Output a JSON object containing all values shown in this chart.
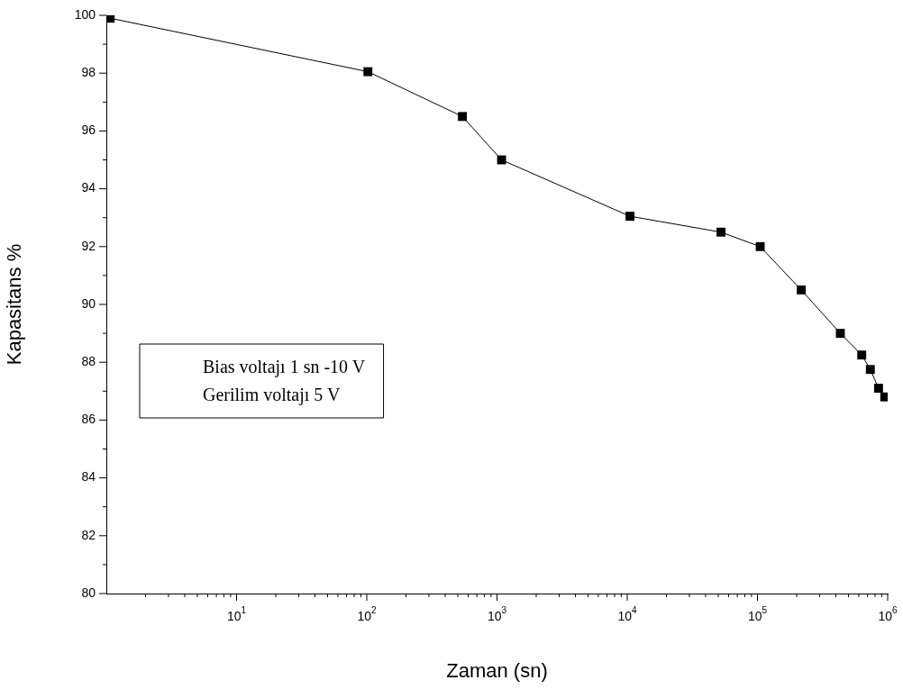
{
  "chart_data": {
    "type": "line",
    "xlabel": "Zaman (sn)",
    "ylabel": "Kapasitans %",
    "log": "x",
    "marker": "square",
    "line_style": "solid",
    "color": "#000000",
    "x": [
      1.07,
      102,
      542,
      1084,
      10500,
      52500,
      105000,
      217000,
      433000,
      632000,
      736000,
      851000,
      950000
    ],
    "values": [
      99.9,
      98.05,
      96.5,
      95,
      93.05,
      92.5,
      92,
      90.5,
      89,
      88.25,
      87.75,
      87.1,
      86.8
    ],
    "xlim": [
      1,
      1000000
    ],
    "xticks": [
      {
        "value": 2,
        "label": null
      },
      {
        "value": 3,
        "label": null
      },
      {
        "value": 4,
        "label": null
      },
      {
        "value": 5,
        "label": null
      },
      {
        "value": 6,
        "label": null
      },
      {
        "value": 7,
        "label": null
      },
      {
        "value": 8,
        "label": null
      },
      {
        "value": 9,
        "label": null
      },
      {
        "value": 10,
        "label": "10$^{1}$"
      },
      {
        "value": 20,
        "label": null
      },
      {
        "value": 30,
        "label": null
      },
      {
        "value": 40,
        "label": null
      },
      {
        "value": 50,
        "label": null
      },
      {
        "value": 60,
        "label": null
      },
      {
        "value": 70,
        "label": null
      },
      {
        "value": 80,
        "label": null
      },
      {
        "value": 90,
        "label": null
      },
      {
        "value": 100,
        "label": "10$^{2}$"
      },
      {
        "value": 200,
        "label": null
      },
      {
        "value": 300,
        "label": null
      },
      {
        "value": 400,
        "label": null
      },
      {
        "value": 500,
        "label": null
      },
      {
        "value": 600,
        "label": null
      },
      {
        "value": 700,
        "label": null
      },
      {
        "value": 800,
        "label": null
      },
      {
        "value": 900,
        "label": null
      },
      {
        "value": 1000,
        "label": "10$^{3}$"
      },
      {
        "value": 2000,
        "label": null
      },
      {
        "value": 3000,
        "label": null
      },
      {
        "value": 4000,
        "label": null
      },
      {
        "value": 5000,
        "label": null
      },
      {
        "value": 6000,
        "label": null
      },
      {
        "value": 7000,
        "label": null
      },
      {
        "value": 8000,
        "label": null
      },
      {
        "value": 9000,
        "label": null
      },
      {
        "value": 10000,
        "label": "10$^{4}$"
      },
      {
        "value": 20000,
        "label": null
      },
      {
        "value": 30000,
        "label": null
      },
      {
        "value": 40000,
        "label": null
      },
      {
        "value": 50000,
        "label": null
      },
      {
        "value": 60000,
        "label": null
      },
      {
        "value": 70000,
        "label": null
      },
      {
        "value": 80000,
        "label": null
      },
      {
        "value": 90000,
        "label": null
      },
      {
        "value": 100000,
        "label": "10$^{5}$"
      },
      {
        "value": 200000,
        "label": null
      },
      {
        "value": 300000,
        "label": null
      },
      {
        "value": 400000,
        "label": null
      },
      {
        "value": 500000,
        "label": null
      },
      {
        "value": 600000,
        "label": null
      },
      {
        "value": 700000,
        "label": null
      },
      {
        "value": 800000,
        "label": null
      },
      {
        "value": 900000,
        "label": null
      },
      {
        "value": 1000000,
        "label": "10$^{6}$"
      }
    ],
    "ylim": [
      80,
      100
    ],
    "yticks": [
      80,
      {
        "value": 81,
        "label": null
      },
      82,
      {
        "value": 83,
        "label": null
      },
      84,
      {
        "value": 85,
        "label": null
      },
      86,
      {
        "value": 87,
        "label": null
      },
      88,
      {
        "value": 89,
        "label": null
      },
      90,
      {
        "value": 91,
        "label": null
      },
      92,
      {
        "value": 93,
        "label": null
      },
      94,
      {
        "value": 95,
        "label": null
      },
      96,
      {
        "value": 97,
        "label": null
      },
      98,
      {
        "value": 99,
        "label": null
      },
      100
    ],
    "annotations": [
      "Bias voltajı 1 sn -10 V",
      "Gerilim voltajı 5 V"
    ]
  }
}
